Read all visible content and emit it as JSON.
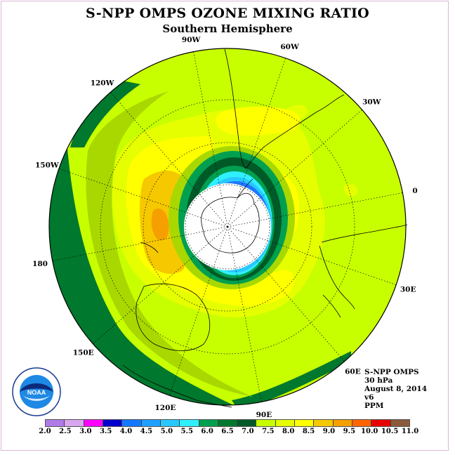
{
  "title": "S-NPP OMPS OZONE MIXING RATIO",
  "subtitle": "Southern Hemisphere",
  "longitude_labels": [
    "90W",
    "60W",
    "30W",
    "0",
    "30E",
    "60E",
    "90E",
    "120E",
    "150E",
    "180",
    "150W",
    "120W"
  ],
  "info": {
    "instrument": "S-NPP OMPS",
    "pressure": "30 hPa",
    "date": "August 8, 2014",
    "version": "v6",
    "units": "PPM"
  },
  "colorbar": {
    "ticks": [
      "2.0",
      "2.5",
      "3.0",
      "3.5",
      "4.0",
      "4.5",
      "5.0",
      "5.5",
      "6.0",
      "6.5",
      "7.0",
      "7.5",
      "8.0",
      "8.5",
      "9.0",
      "9.5",
      "10.0",
      "10.5",
      "11.0"
    ],
    "colors": [
      "#b07ae8",
      "#d9a6f0",
      "#ff00ff",
      "#0000cc",
      "#1478ff",
      "#1ea0ff",
      "#28c8ff",
      "#30f0ff",
      "#00a050",
      "#00782d",
      "#005a28",
      "#c8ff00",
      "#e6ff00",
      "#ffff00",
      "#f5c800",
      "#f5a000",
      "#ff6400",
      "#e60000",
      "#8b5a3c"
    ]
  },
  "logo": {
    "text": "NOAA",
    "ring_text": "NATIONAL OCEANIC AND ATMOSPHERIC ADMINISTRATION · U.S. DEPARTMENT OF COMMERCE"
  }
}
